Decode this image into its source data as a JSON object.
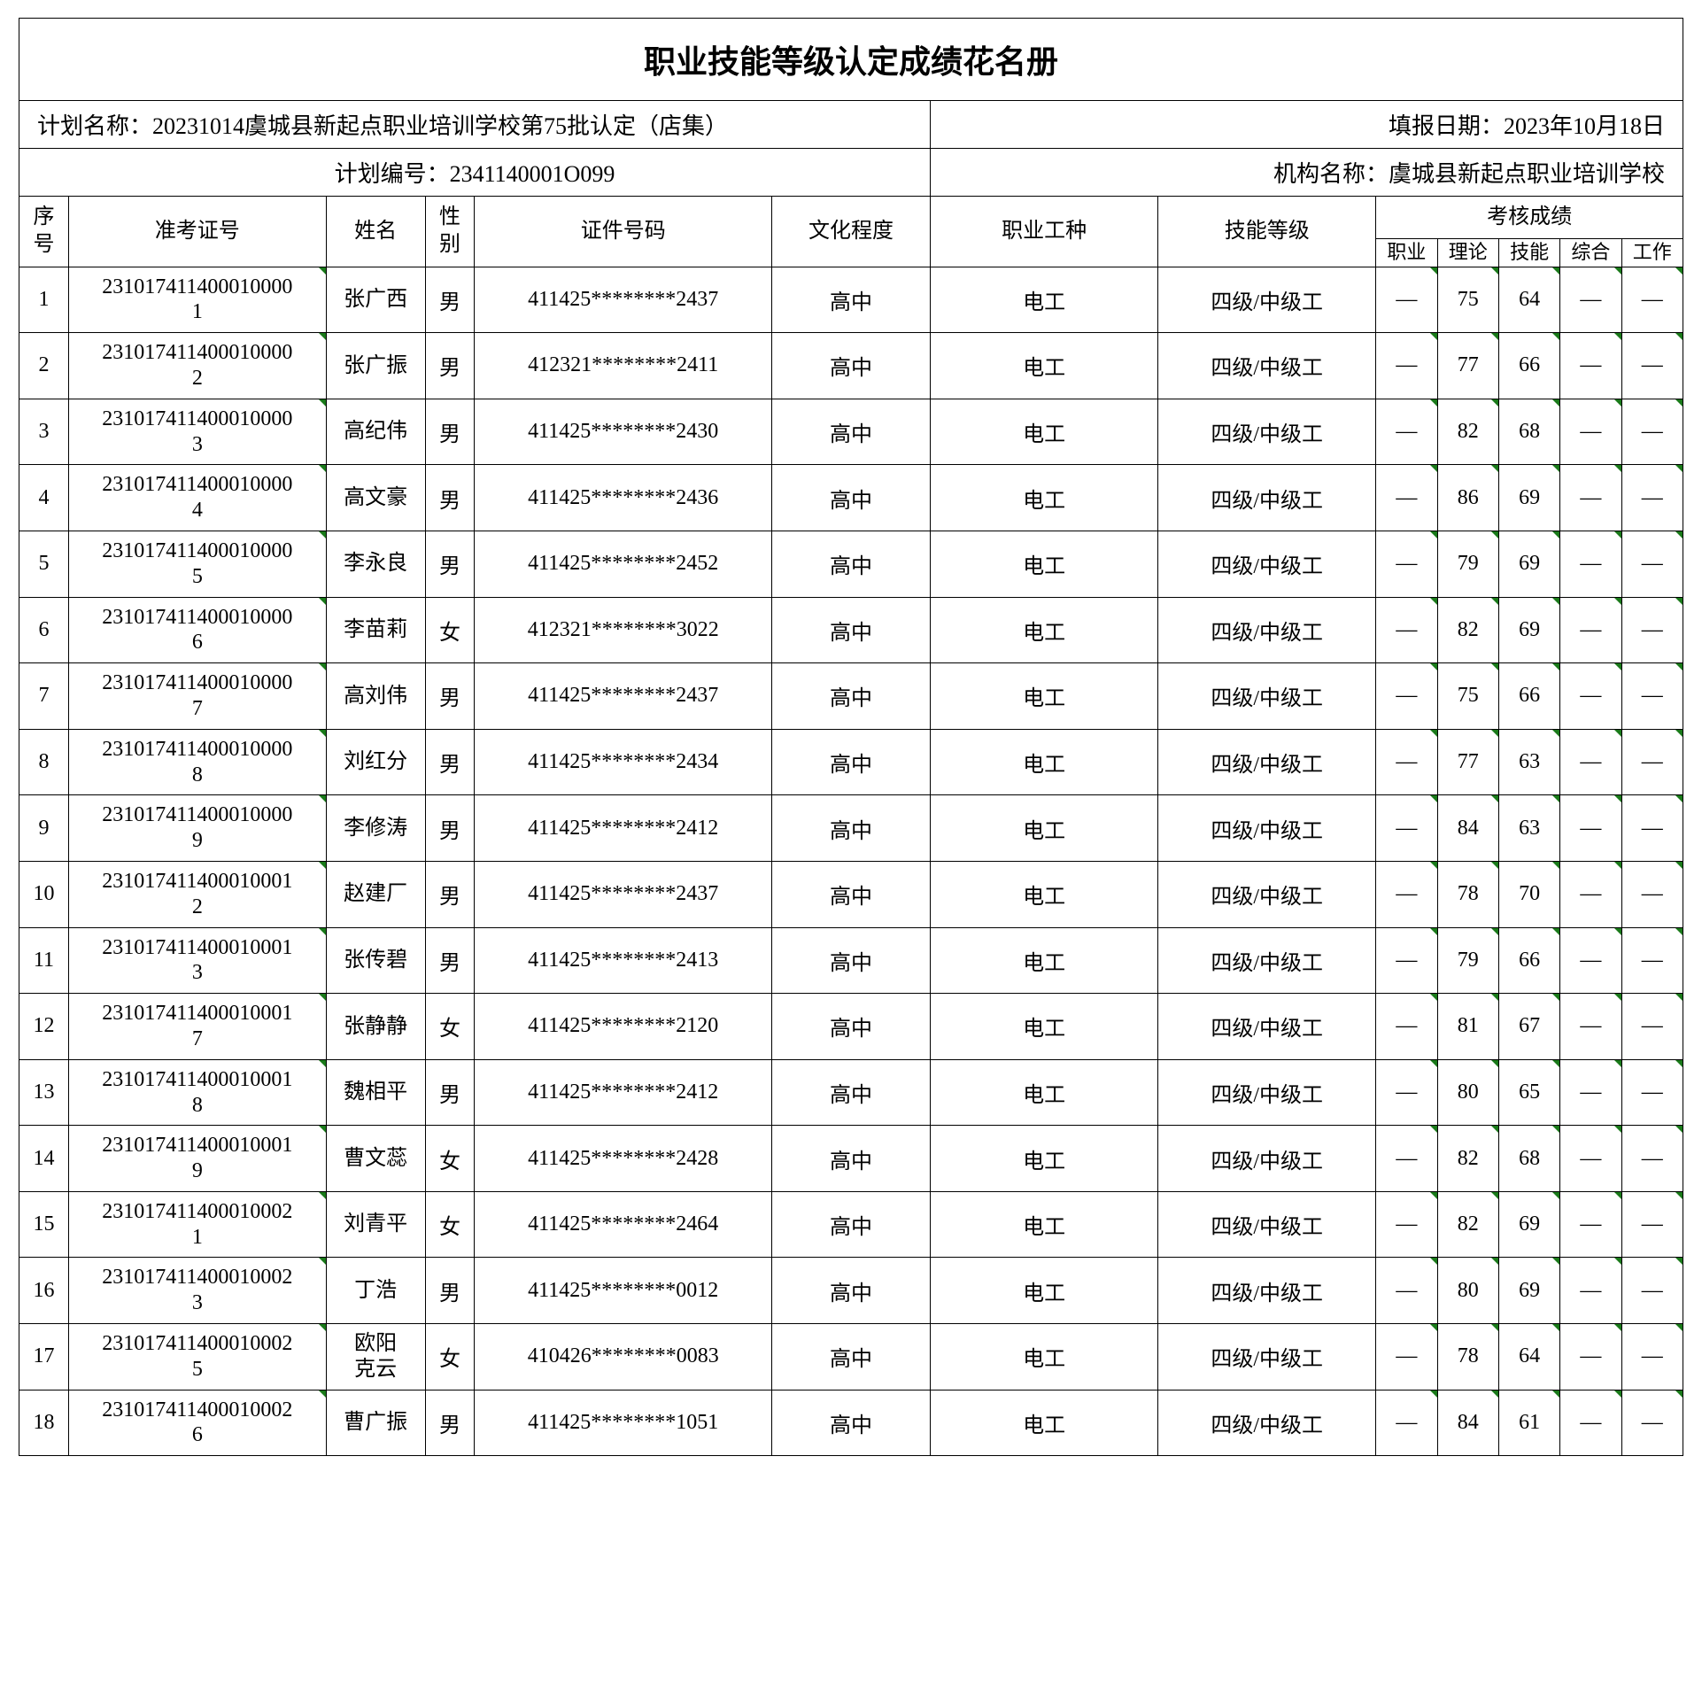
{
  "title": "职业技能等级认定成绩花名册",
  "info": {
    "plan_name_label": "计划名称：20231014虞城县新起点职业培训学校第75批认定（店集）",
    "report_date_label": "填报日期：2023年10月18日",
    "plan_code_label": "计划编号：2341140001O099",
    "org_name_label": "机构名称：虞城县新起点职业培训学校"
  },
  "headers": {
    "seq": "序号",
    "exam_no": "准考证号",
    "name": "姓名",
    "gender": "性别",
    "id_no": "证件号码",
    "education": "文化程度",
    "occupation": "职业工种",
    "skill_level": "技能等级",
    "scores": "考核成绩",
    "score_prof": "职业",
    "score_theory": "理论",
    "score_skill": "技能",
    "score_comp": "综合",
    "score_work": "工作"
  },
  "rows": [
    {
      "seq": "1",
      "exam": "2310174114000100001",
      "name": "张广西",
      "gender": "男",
      "id": "411425********2437",
      "edu": "高中",
      "occ": "电工",
      "skill": "四级/中级工",
      "s1": "—",
      "s2": "75",
      "s3": "64",
      "s4": "—",
      "s5": "—"
    },
    {
      "seq": "2",
      "exam": "2310174114000100002",
      "name": "张广振",
      "gender": "男",
      "id": "412321********2411",
      "edu": "高中",
      "occ": "电工",
      "skill": "四级/中级工",
      "s1": "—",
      "s2": "77",
      "s3": "66",
      "s4": "—",
      "s5": "—"
    },
    {
      "seq": "3",
      "exam": "2310174114000100003",
      "name": "高纪伟",
      "gender": "男",
      "id": "411425********2430",
      "edu": "高中",
      "occ": "电工",
      "skill": "四级/中级工",
      "s1": "—",
      "s2": "82",
      "s3": "68",
      "s4": "—",
      "s5": "—"
    },
    {
      "seq": "4",
      "exam": "2310174114000100004",
      "name": "高文豪",
      "gender": "男",
      "id": "411425********2436",
      "edu": "高中",
      "occ": "电工",
      "skill": "四级/中级工",
      "s1": "—",
      "s2": "86",
      "s3": "69",
      "s4": "—",
      "s5": "—"
    },
    {
      "seq": "5",
      "exam": "2310174114000100005",
      "name": "李永良",
      "gender": "男",
      "id": "411425********2452",
      "edu": "高中",
      "occ": "电工",
      "skill": "四级/中级工",
      "s1": "—",
      "s2": "79",
      "s3": "69",
      "s4": "—",
      "s5": "—"
    },
    {
      "seq": "6",
      "exam": "2310174114000100006",
      "name": "李苗莉",
      "gender": "女",
      "id": "412321********3022",
      "edu": "高中",
      "occ": "电工",
      "skill": "四级/中级工",
      "s1": "—",
      "s2": "82",
      "s3": "69",
      "s4": "—",
      "s5": "—"
    },
    {
      "seq": "7",
      "exam": "2310174114000100007",
      "name": "高刘伟",
      "gender": "男",
      "id": "411425********2437",
      "edu": "高中",
      "occ": "电工",
      "skill": "四级/中级工",
      "s1": "—",
      "s2": "75",
      "s3": "66",
      "s4": "—",
      "s5": "—"
    },
    {
      "seq": "8",
      "exam": "2310174114000100008",
      "name": "刘红分",
      "gender": "男",
      "id": "411425********2434",
      "edu": "高中",
      "occ": "电工",
      "skill": "四级/中级工",
      "s1": "—",
      "s2": "77",
      "s3": "63",
      "s4": "—",
      "s5": "—"
    },
    {
      "seq": "9",
      "exam": "2310174114000100009",
      "name": "李修涛",
      "gender": "男",
      "id": "411425********2412",
      "edu": "高中",
      "occ": "电工",
      "skill": "四级/中级工",
      "s1": "—",
      "s2": "84",
      "s3": "63",
      "s4": "—",
      "s5": "—"
    },
    {
      "seq": "10",
      "exam": "2310174114000100012",
      "name": "赵建厂",
      "gender": "男",
      "id": "411425********2437",
      "edu": "高中",
      "occ": "电工",
      "skill": "四级/中级工",
      "s1": "—",
      "s2": "78",
      "s3": "70",
      "s4": "—",
      "s5": "—"
    },
    {
      "seq": "11",
      "exam": "2310174114000100013",
      "name": "张传碧",
      "gender": "男",
      "id": "411425********2413",
      "edu": "高中",
      "occ": "电工",
      "skill": "四级/中级工",
      "s1": "—",
      "s2": "79",
      "s3": "66",
      "s4": "—",
      "s5": "—"
    },
    {
      "seq": "12",
      "exam": "2310174114000100017",
      "name": "张静静",
      "gender": "女",
      "id": "411425********2120",
      "edu": "高中",
      "occ": "电工",
      "skill": "四级/中级工",
      "s1": "—",
      "s2": "81",
      "s3": "67",
      "s4": "—",
      "s5": "—"
    },
    {
      "seq": "13",
      "exam": "2310174114000100018",
      "name": "魏相平",
      "gender": "男",
      "id": "411425********2412",
      "edu": "高中",
      "occ": "电工",
      "skill": "四级/中级工",
      "s1": "—",
      "s2": "80",
      "s3": "65",
      "s4": "—",
      "s5": "—"
    },
    {
      "seq": "14",
      "exam": "2310174114000100019",
      "name": "曹文蕊",
      "gender": "女",
      "id": "411425********2428",
      "edu": "高中",
      "occ": "电工",
      "skill": "四级/中级工",
      "s1": "—",
      "s2": "82",
      "s3": "68",
      "s4": "—",
      "s5": "—"
    },
    {
      "seq": "15",
      "exam": "2310174114000100021",
      "name": "刘青平",
      "gender": "女",
      "id": "411425********2464",
      "edu": "高中",
      "occ": "电工",
      "skill": "四级/中级工",
      "s1": "—",
      "s2": "82",
      "s3": "69",
      "s4": "—",
      "s5": "—"
    },
    {
      "seq": "16",
      "exam": "2310174114000100023",
      "name": "丁浩",
      "gender": "男",
      "id": "411425********0012",
      "edu": "高中",
      "occ": "电工",
      "skill": "四级/中级工",
      "s1": "—",
      "s2": "80",
      "s3": "69",
      "s4": "—",
      "s5": "—"
    },
    {
      "seq": "17",
      "exam": "2310174114000100025",
      "name": "欧阳克云",
      "gender": "女",
      "id": "410426********0083",
      "edu": "高中",
      "occ": "电工",
      "skill": "四级/中级工",
      "s1": "—",
      "s2": "78",
      "s3": "64",
      "s4": "—",
      "s5": "—"
    },
    {
      "seq": "18",
      "exam": "2310174114000100026",
      "name": "曹广振",
      "gender": "男",
      "id": "411425********1051",
      "edu": "高中",
      "occ": "电工",
      "skill": "四级/中级工",
      "s1": "—",
      "s2": "84",
      "s3": "61",
      "s4": "—",
      "s5": "—"
    }
  ]
}
